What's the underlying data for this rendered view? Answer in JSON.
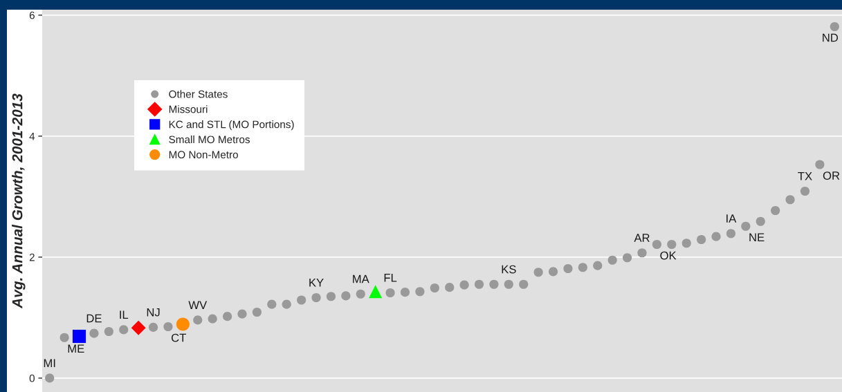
{
  "chart_data": {
    "type": "scatter",
    "ylabel": "Avg. Annual Growth, 2001-2013",
    "categories": [
      null,
      null,
      null,
      null,
      null,
      null,
      null,
      null,
      null,
      null,
      null,
      null,
      null,
      null,
      null,
      null,
      null,
      null,
      null,
      null,
      null,
      null,
      null,
      null,
      null,
      null,
      null,
      null,
      null,
      null,
      null,
      null,
      null,
      null,
      null,
      null,
      null,
      null,
      null,
      null,
      null,
      null,
      null,
      null,
      null,
      null,
      null,
      null,
      null,
      null,
      null,
      null,
      null,
      null
    ],
    "series": [
      {
        "name": "Other States",
        "color": "#999999",
        "marker": "circle",
        "values": [
          0.0,
          0.67,
          null,
          0.74,
          0.77,
          0.8,
          null,
          0.84,
          0.85,
          null,
          0.96,
          0.98,
          1.02,
          1.06,
          1.09,
          1.22,
          1.22,
          1.29,
          1.33,
          1.35,
          1.36,
          1.39,
          null,
          1.41,
          1.42,
          1.43,
          1.49,
          1.5,
          1.54,
          1.55,
          1.55,
          1.55,
          1.55,
          1.75,
          1.76,
          1.81,
          1.83,
          1.86,
          1.95,
          1.99,
          2.07,
          2.21,
          2.21,
          2.23,
          2.29,
          2.34,
          2.39,
          2.51,
          2.59,
          2.77,
          2.95,
          3.09,
          3.53,
          5.81
        ],
        "value_labels": [
          "MI",
          "ME",
          null,
          "DE",
          null,
          "IL",
          null,
          "NJ",
          "CT",
          null,
          "WV",
          null,
          null,
          null,
          null,
          null,
          null,
          null,
          "KY",
          null,
          null,
          "MA",
          null,
          "FL",
          null,
          null,
          null,
          null,
          null,
          null,
          null,
          "KS",
          null,
          null,
          null,
          null,
          null,
          null,
          null,
          null,
          "AR",
          "OK",
          null,
          null,
          null,
          null,
          "IA",
          "NE",
          null,
          null,
          null,
          "TX",
          "OR",
          "ND"
        ]
      },
      {
        "name": "Missouri",
        "color": "#ff0000",
        "marker": "diamond",
        "values": [
          null,
          null,
          null,
          null,
          null,
          null,
          0.83,
          null,
          null,
          null,
          null,
          null,
          null,
          null,
          null,
          null,
          null,
          null,
          null,
          null,
          null,
          null,
          null,
          null,
          null,
          null,
          null,
          null,
          null,
          null,
          null,
          null,
          null,
          null,
          null,
          null,
          null,
          null,
          null,
          null,
          null,
          null,
          null,
          null,
          null,
          null,
          null,
          null,
          null,
          null,
          null,
          null,
          null,
          null
        ]
      },
      {
        "name": "KC and STL (MO Portions)",
        "color": "#0000ff",
        "marker": "square",
        "values": [
          null,
          null,
          0.69,
          null,
          null,
          null,
          null,
          null,
          null,
          null,
          null,
          null,
          null,
          null,
          null,
          null,
          null,
          null,
          null,
          null,
          null,
          null,
          null,
          null,
          null,
          null,
          null,
          null,
          null,
          null,
          null,
          null,
          null,
          null,
          null,
          null,
          null,
          null,
          null,
          null,
          null,
          null,
          null,
          null,
          null,
          null,
          null,
          null,
          null,
          null,
          null,
          null,
          null,
          null
        ]
      },
      {
        "name": "Small MO Metros",
        "color": "#00ff00",
        "marker": "triangle",
        "values": [
          null,
          null,
          null,
          null,
          null,
          null,
          null,
          null,
          null,
          null,
          null,
          null,
          null,
          null,
          null,
          null,
          null,
          null,
          null,
          null,
          null,
          null,
          1.43,
          null,
          null,
          null,
          null,
          null,
          null,
          null,
          null,
          null,
          null,
          null,
          null,
          null,
          null,
          null,
          null,
          null,
          null,
          null,
          null,
          null,
          null,
          null,
          null,
          null,
          null,
          null,
          null,
          null,
          null,
          null
        ]
      },
      {
        "name": "MO Non-Metro",
        "color": "#ff8c00",
        "marker": "circle",
        "values": [
          null,
          null,
          null,
          null,
          null,
          null,
          null,
          null,
          null,
          0.89,
          null,
          null,
          null,
          null,
          null,
          null,
          null,
          null,
          null,
          null,
          null,
          null,
          null,
          null,
          null,
          null,
          null,
          null,
          null,
          null,
          null,
          null,
          null,
          null,
          null,
          null,
          null,
          null,
          null,
          null,
          null,
          null,
          null,
          null,
          null,
          null,
          null,
          null,
          null,
          null,
          null,
          null,
          null,
          null
        ]
      }
    ],
    "ylim": [
      -0.23,
      6.09
    ],
    "yticks": [
      0,
      2,
      4,
      6
    ],
    "grid": "y",
    "legend": "top left",
    "tick_labels": "y"
  }
}
